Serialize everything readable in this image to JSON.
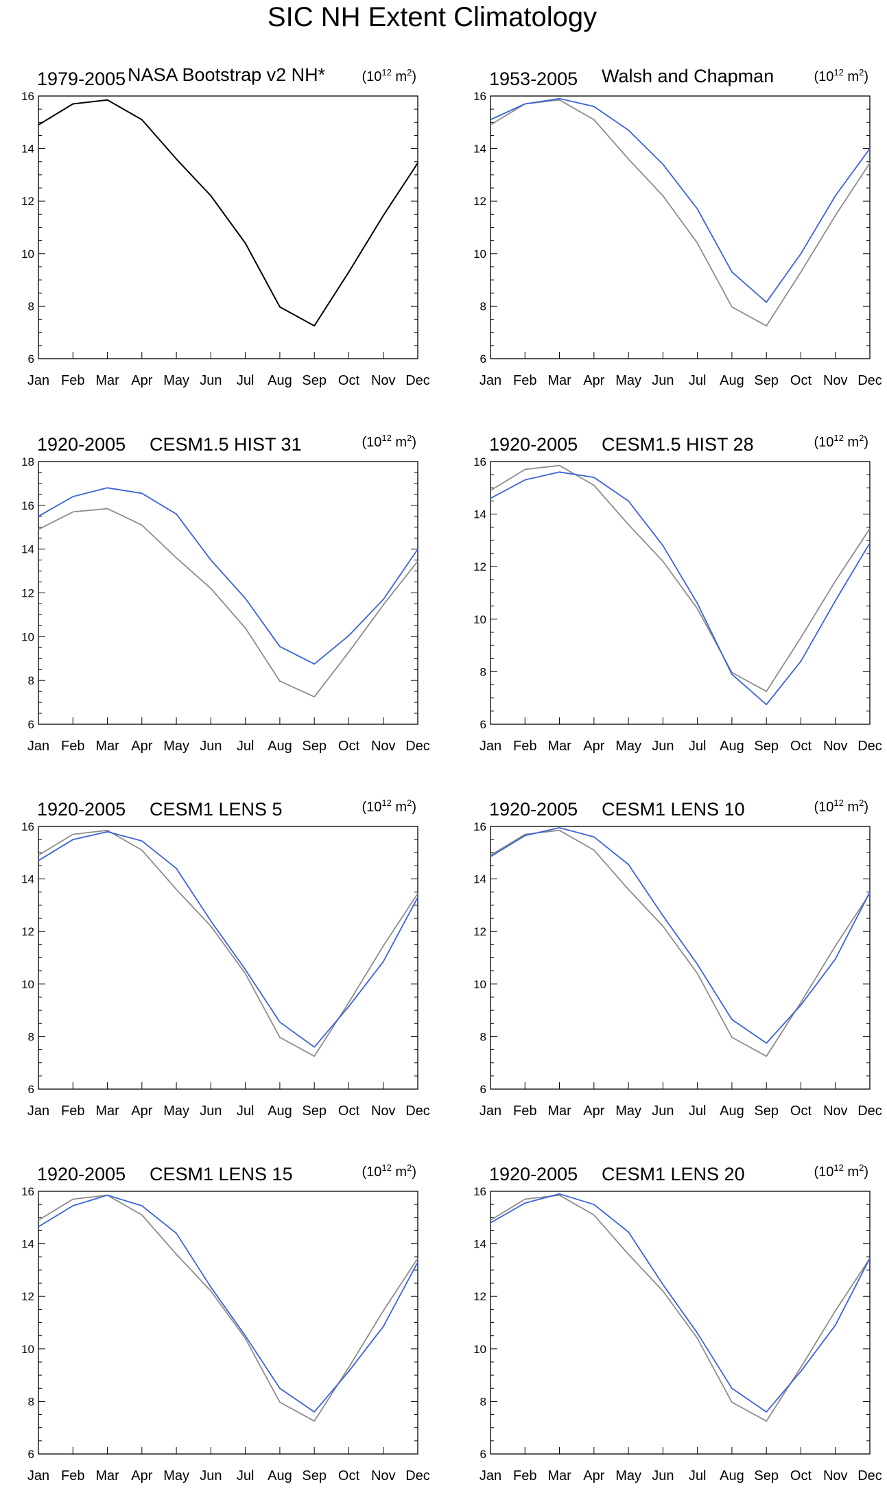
{
  "figure_title": "SIC NH Extent Climatology",
  "colors": {
    "observed": "#8c8c8c",
    "model": "#3a63d6",
    "reference": "#000000",
    "axis": "#000000"
  },
  "units_base": "(10",
  "units_exp": "12",
  "units_rest": " m",
  "units_sq": "2",
  "units_close": ")",
  "chart_data": [
    {
      "type": "line",
      "period": "1979-2005",
      "title": "NASA Bootstrap v2 NH*",
      "categories": [
        "Jan",
        "Feb",
        "Mar",
        "Apr",
        "May",
        "Jun",
        "Jul",
        "Aug",
        "Sep",
        "Oct",
        "Nov",
        "Dec"
      ],
      "ylim": [
        6,
        16
      ],
      "yticks": [
        6,
        8,
        10,
        12,
        14,
        16
      ],
      "series": [
        {
          "name": "NASA Bootstrap v2 NH*",
          "role": "reference",
          "values": [
            14.9,
            15.7,
            15.85,
            15.1,
            13.6,
            12.2,
            10.4,
            7.97,
            7.25,
            9.3,
            11.45,
            13.45
          ]
        }
      ]
    },
    {
      "type": "line",
      "period": "1953-2005",
      "title": "Walsh and Chapman",
      "categories": [
        "Jan",
        "Feb",
        "Mar",
        "Apr",
        "May",
        "Jun",
        "Jul",
        "Aug",
        "Sep",
        "Oct",
        "Nov",
        "Dec"
      ],
      "ylim": [
        6,
        16
      ],
      "yticks": [
        6,
        8,
        10,
        12,
        14,
        16
      ],
      "series": [
        {
          "name": "NASA Bootstrap v2 NH*",
          "role": "observed",
          "values": [
            14.9,
            15.7,
            15.85,
            15.1,
            13.6,
            12.2,
            10.4,
            7.97,
            7.25,
            9.3,
            11.45,
            13.45
          ]
        },
        {
          "name": "Walsh and Chapman",
          "role": "model",
          "values": [
            15.1,
            15.7,
            15.9,
            15.6,
            14.7,
            13.4,
            11.7,
            9.3,
            8.15,
            10.0,
            12.2,
            14.0
          ]
        }
      ]
    },
    {
      "type": "line",
      "period": "1920-2005",
      "title": "CESM1.5 HIST 31",
      "categories": [
        "Jan",
        "Feb",
        "Mar",
        "Apr",
        "May",
        "Jun",
        "Jul",
        "Aug",
        "Sep",
        "Oct",
        "Nov",
        "Dec"
      ],
      "ylim": [
        6,
        18
      ],
      "yticks": [
        6,
        8,
        10,
        12,
        14,
        16,
        18
      ],
      "series": [
        {
          "name": "NASA Bootstrap v2 NH*",
          "role": "observed",
          "values": [
            14.9,
            15.7,
            15.85,
            15.1,
            13.6,
            12.2,
            10.4,
            7.97,
            7.25,
            9.3,
            11.45,
            13.45
          ]
        },
        {
          "name": "CESM1.5 HIST 31",
          "role": "model",
          "values": [
            15.5,
            16.4,
            16.8,
            16.55,
            15.6,
            13.5,
            11.75,
            9.55,
            8.75,
            10.05,
            11.7,
            14.0
          ]
        }
      ]
    },
    {
      "type": "line",
      "period": "1920-2005",
      "title": "CESM1.5 HIST 28",
      "categories": [
        "Jan",
        "Feb",
        "Mar",
        "Apr",
        "May",
        "Jun",
        "Jul",
        "Aug",
        "Sep",
        "Oct",
        "Nov",
        "Dec"
      ],
      "ylim": [
        6,
        16
      ],
      "yticks": [
        6,
        8,
        10,
        12,
        14,
        16
      ],
      "series": [
        {
          "name": "NASA Bootstrap v2 NH*",
          "role": "observed",
          "values": [
            14.9,
            15.7,
            15.85,
            15.1,
            13.6,
            12.2,
            10.4,
            7.97,
            7.25,
            9.3,
            11.45,
            13.45
          ]
        },
        {
          "name": "CESM1.5 HIST 28",
          "role": "model",
          "values": [
            14.6,
            15.3,
            15.6,
            15.4,
            14.5,
            12.8,
            10.6,
            7.9,
            6.75,
            8.4,
            10.7,
            12.9
          ]
        }
      ]
    },
    {
      "type": "line",
      "period": "1920-2005",
      "title": "CESM1 LENS 5",
      "categories": [
        "Jan",
        "Feb",
        "Mar",
        "Apr",
        "May",
        "Jun",
        "Jul",
        "Aug",
        "Sep",
        "Oct",
        "Nov",
        "Dec"
      ],
      "ylim": [
        6,
        16
      ],
      "yticks": [
        6,
        8,
        10,
        12,
        14,
        16
      ],
      "series": [
        {
          "name": "NASA Bootstrap v2 NH*",
          "role": "observed",
          "values": [
            14.9,
            15.7,
            15.85,
            15.1,
            13.6,
            12.2,
            10.4,
            7.97,
            7.25,
            9.3,
            11.45,
            13.45
          ]
        },
        {
          "name": "CESM1 LENS 5",
          "role": "model",
          "values": [
            14.7,
            15.5,
            15.8,
            15.45,
            14.4,
            12.4,
            10.55,
            8.55,
            7.6,
            9.15,
            10.85,
            13.3
          ]
        }
      ]
    },
    {
      "type": "line",
      "period": "1920-2005",
      "title": "CESM1 LENS 10",
      "categories": [
        "Jan",
        "Feb",
        "Mar",
        "Apr",
        "May",
        "Jun",
        "Jul",
        "Aug",
        "Sep",
        "Oct",
        "Nov",
        "Dec"
      ],
      "ylim": [
        6,
        16
      ],
      "yticks": [
        6,
        8,
        10,
        12,
        14,
        16
      ],
      "series": [
        {
          "name": "NASA Bootstrap v2 NH*",
          "role": "observed",
          "values": [
            14.9,
            15.7,
            15.85,
            15.1,
            13.6,
            12.2,
            10.4,
            7.97,
            7.25,
            9.3,
            11.45,
            13.45
          ]
        },
        {
          "name": "CESM1 LENS 10",
          "role": "model",
          "values": [
            14.85,
            15.65,
            15.95,
            15.6,
            14.55,
            12.6,
            10.75,
            8.65,
            7.75,
            9.2,
            10.95,
            13.5
          ]
        }
      ]
    },
    {
      "type": "line",
      "period": "1920-2005",
      "title": "CESM1 LENS 15",
      "categories": [
        "Jan",
        "Feb",
        "Mar",
        "Apr",
        "May",
        "Jun",
        "Jul",
        "Aug",
        "Sep",
        "Oct",
        "Nov",
        "Dec"
      ],
      "ylim": [
        6,
        16
      ],
      "yticks": [
        6,
        8,
        10,
        12,
        14,
        16
      ],
      "series": [
        {
          "name": "NASA Bootstrap v2 NH*",
          "role": "observed",
          "values": [
            14.9,
            15.7,
            15.85,
            15.1,
            13.6,
            12.2,
            10.4,
            7.97,
            7.25,
            9.3,
            11.45,
            13.45
          ]
        },
        {
          "name": "CESM1 LENS 15",
          "role": "model",
          "values": [
            14.65,
            15.45,
            15.85,
            15.45,
            14.4,
            12.35,
            10.5,
            8.5,
            7.6,
            9.15,
            10.85,
            13.3
          ]
        }
      ]
    },
    {
      "type": "line",
      "period": "1920-2005",
      "title": "CESM1 LENS 20",
      "categories": [
        "Jan",
        "Feb",
        "Mar",
        "Apr",
        "May",
        "Jun",
        "Jul",
        "Aug",
        "Sep",
        "Oct",
        "Nov",
        "Dec"
      ],
      "ylim": [
        6,
        16
      ],
      "yticks": [
        6,
        8,
        10,
        12,
        14,
        16
      ],
      "series": [
        {
          "name": "NASA Bootstrap v2 NH*",
          "role": "observed",
          "values": [
            14.9,
            15.7,
            15.85,
            15.1,
            13.6,
            12.2,
            10.4,
            7.97,
            7.25,
            9.3,
            11.45,
            13.45
          ]
        },
        {
          "name": "CESM1 LENS 20",
          "role": "model",
          "values": [
            14.8,
            15.55,
            15.9,
            15.5,
            14.45,
            12.45,
            10.6,
            8.5,
            7.6,
            9.15,
            10.9,
            13.45
          ]
        }
      ]
    }
  ]
}
